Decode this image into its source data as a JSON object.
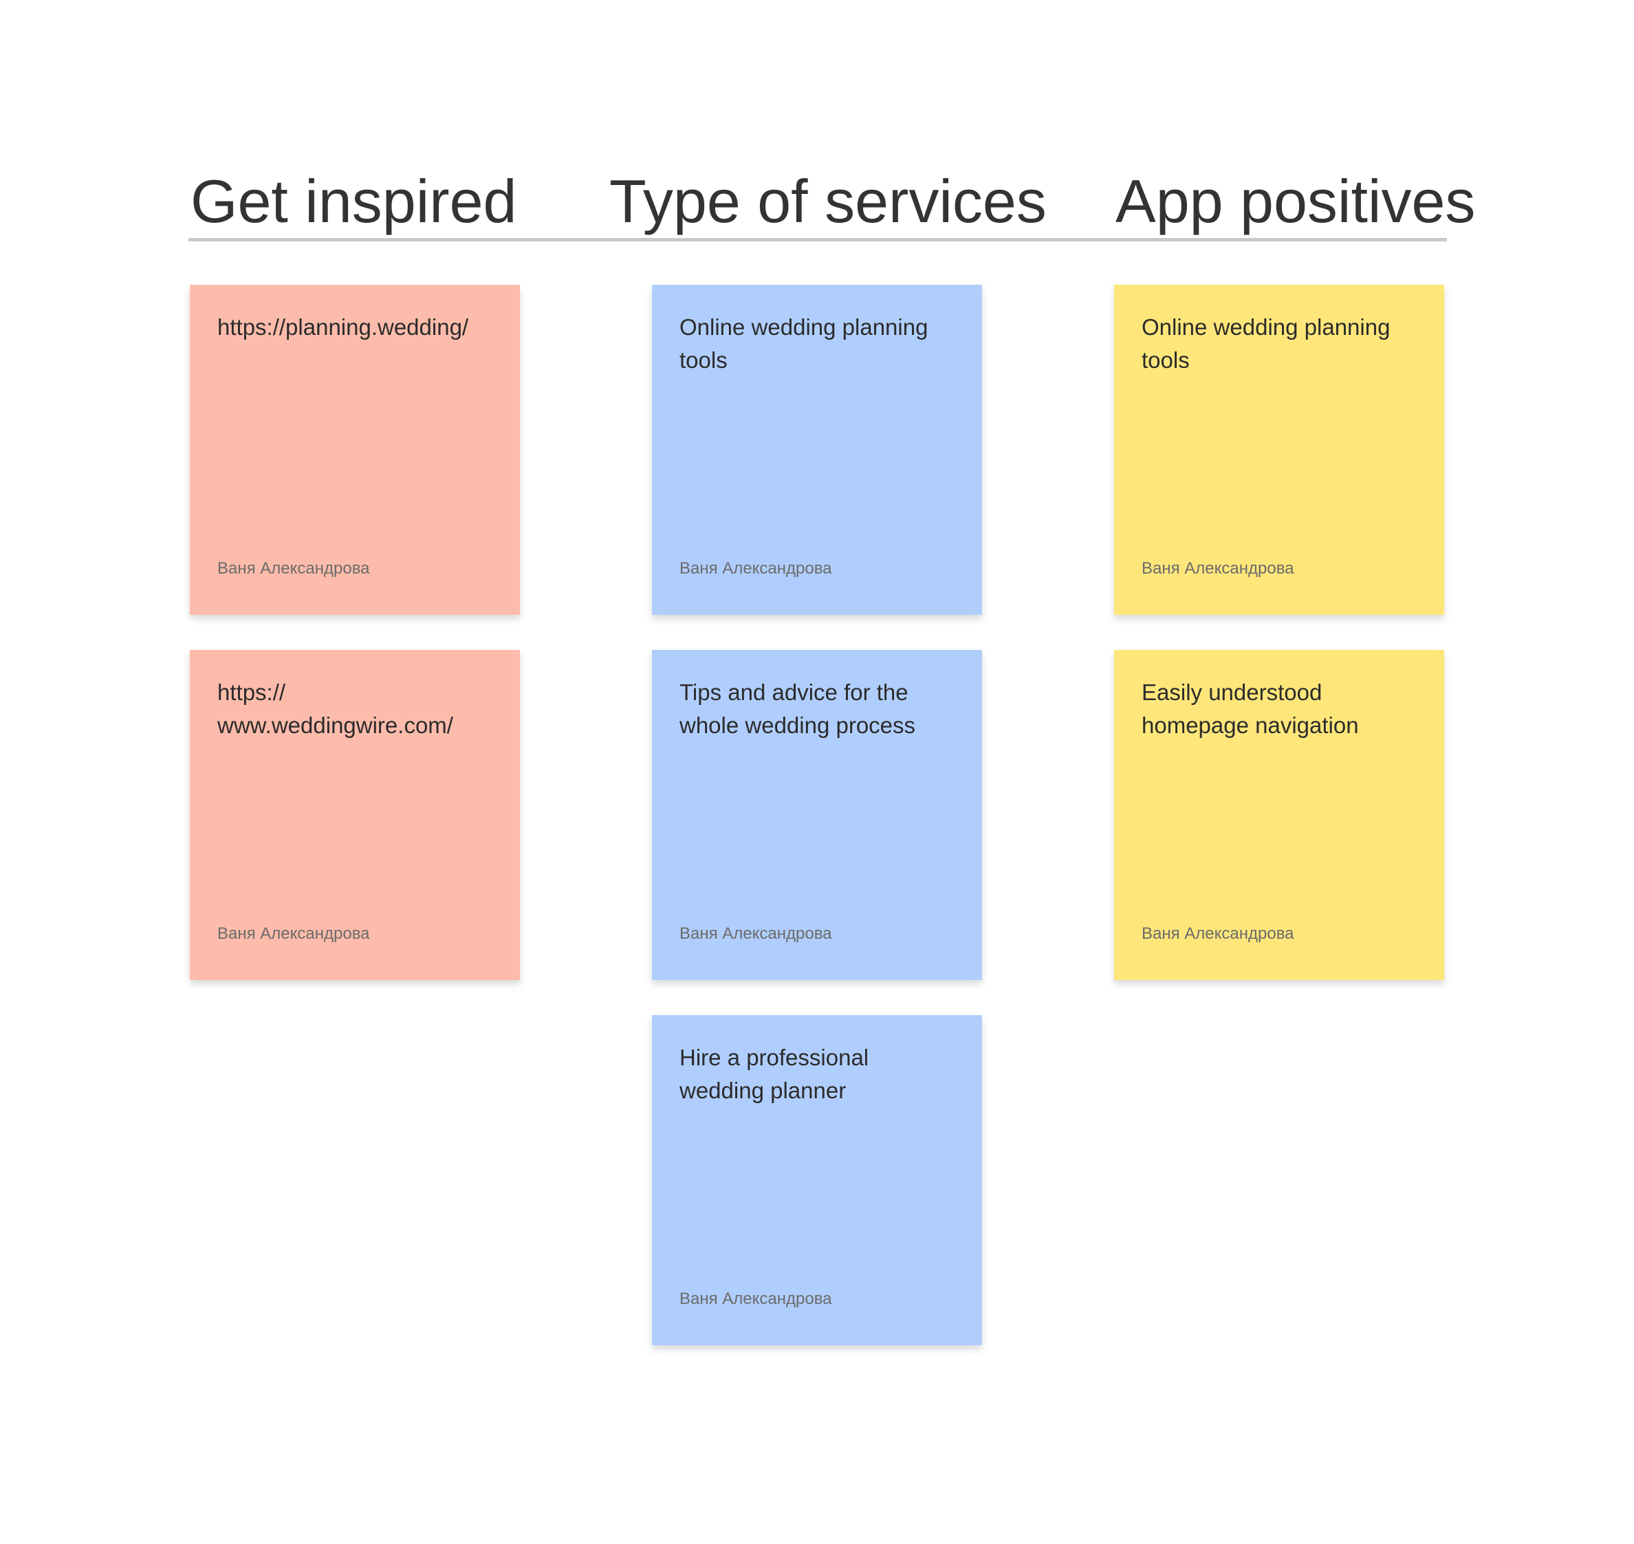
{
  "colors": {
    "pink": "#fdbcab",
    "blue": "#b0cefd",
    "yellow": "#fee67a",
    "divider": "#c9c9c9",
    "heading_text": "#333333"
  },
  "columns": [
    {
      "title": "Get inspired",
      "color": "pink",
      "notes": [
        {
          "text": "https://planning.wedding/",
          "author": "Ваня Александрова"
        },
        {
          "text": "https:// www.weddingwire.com/",
          "author": "Ваня Александрова"
        }
      ]
    },
    {
      "title": "Type of services",
      "color": "blue",
      "notes": [
        {
          "text": "Online wedding planning tools",
          "author": "Ваня Александрова"
        },
        {
          "text": "Tips and advice for the whole wedding process",
          "author": "Ваня Александрова"
        },
        {
          "text": "Hire a professional wedding planner",
          "author": "Ваня Александрова"
        }
      ]
    },
    {
      "title": "App positives",
      "color": "yellow",
      "notes": [
        {
          "text": "Online wedding planning tools",
          "author": "Ваня Александрова"
        },
        {
          "text": "Easily understood homepage navigation",
          "author": "Ваня Александрова"
        }
      ]
    }
  ]
}
